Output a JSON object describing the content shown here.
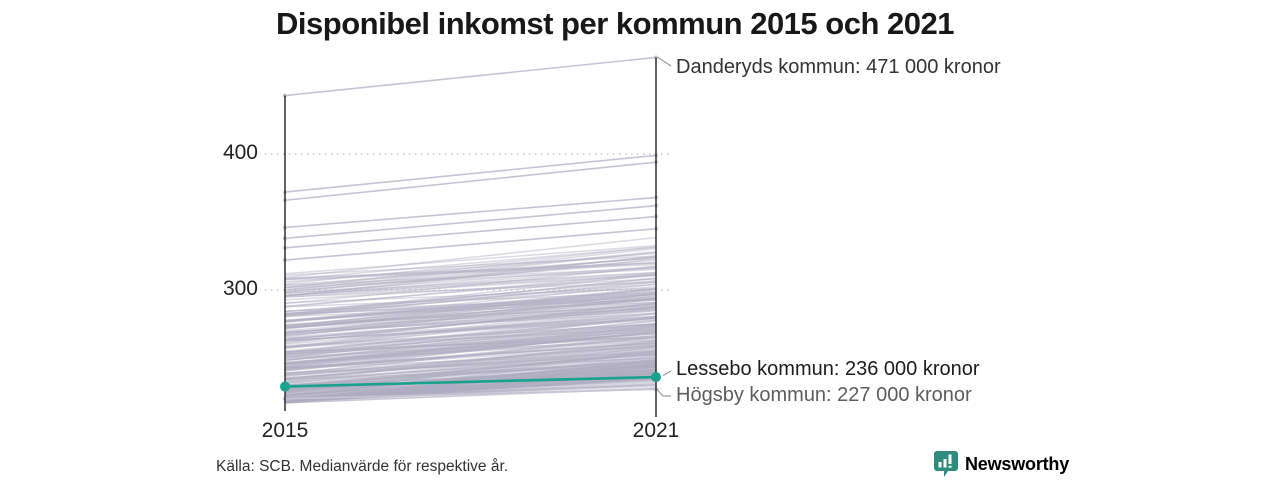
{
  "title": "Disponibel inkomst per kommun 2015 och 2021",
  "source": "Källa: SCB. Medianvärde för respektive år.",
  "brand": {
    "name": "Newsworthy",
    "color": "#2e8b7e"
  },
  "chart_data": {
    "type": "line",
    "subtype": "slope",
    "x": [
      2015,
      2021
    ],
    "x_tick_labels": [
      "2015",
      "2021"
    ],
    "y_ticks": [
      300,
      400
    ],
    "y_tick_labels": [
      "300",
      "400"
    ],
    "y_unit": "tusen kronor",
    "grid": "dotted horizontal at y ticks",
    "highlighted_series": [
      {
        "name": "Danderyds kommun",
        "values": [
          443,
          471
        ],
        "label": "Danderyds kommun: 471 000 kronor",
        "style": "gray"
      },
      {
        "name": "Lessebo kommun",
        "values": [
          229,
          236
        ],
        "label": "Lessebo kommun: 236 000 kronor",
        "style": "teal"
      },
      {
        "name": "Högsby kommun",
        "values": [
          220,
          227
        ],
        "label": "Högsby kommun: 227 000 kronor",
        "style": "gray"
      }
    ],
    "distinct_background_lines": [
      [
        372,
        399
      ],
      [
        366,
        394
      ],
      [
        346,
        368
      ],
      [
        338,
        362
      ],
      [
        331,
        354
      ],
      [
        322,
        345
      ]
    ],
    "background_band": {
      "description": "remaining Swedish municipalities, unlabeled gray slope lines densest near the bottom",
      "count": 270,
      "start_min": 217,
      "start_spread": 95,
      "growth_min": 10,
      "growth_spread": 20,
      "seed": 7
    },
    "colors": {
      "teal": "#1aa18e",
      "gray_line": "#c6c4d4",
      "band_line": "rgba(176,174,194,0.45)",
      "axis": "#222222",
      "grid": "#c9c9c9",
      "connector": "#999999"
    }
  }
}
